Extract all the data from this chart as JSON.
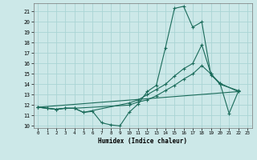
{
  "xlabel": "Humidex (Indice chaleur)",
  "xlim": [
    -0.5,
    23.5
  ],
  "ylim": [
    9.8,
    21.8
  ],
  "yticks": [
    10,
    11,
    12,
    13,
    14,
    15,
    16,
    17,
    18,
    19,
    20,
    21
  ],
  "xticks": [
    0,
    1,
    2,
    3,
    4,
    5,
    6,
    7,
    8,
    9,
    10,
    11,
    12,
    13,
    14,
    15,
    16,
    17,
    18,
    19,
    20,
    21,
    22,
    23
  ],
  "bg_color": "#cce8e8",
  "grid_color": "#aad4d4",
  "line_color": "#1a6b5a",
  "line1_x": [
    0,
    1,
    2,
    3,
    4,
    5,
    6,
    7,
    8,
    9,
    10,
    11,
    12,
    13,
    14,
    15,
    16,
    17,
    18,
    19,
    20,
    21,
    22
  ],
  "line1_y": [
    11.8,
    11.7,
    11.6,
    11.7,
    11.7,
    11.3,
    11.4,
    10.3,
    10.1,
    10.0,
    11.3,
    12.1,
    13.3,
    13.9,
    17.5,
    21.3,
    21.5,
    19.5,
    20.0,
    14.9,
    14.1,
    11.2,
    13.3
  ],
  "line2_x": [
    0,
    1,
    2,
    3,
    4,
    5,
    10,
    11,
    12,
    13,
    14,
    15,
    16,
    17,
    18,
    19,
    20,
    22
  ],
  "line2_y": [
    11.8,
    11.7,
    11.6,
    11.7,
    11.7,
    11.3,
    12.2,
    12.5,
    13.0,
    13.5,
    14.0,
    14.8,
    15.5,
    16.0,
    17.8,
    15.0,
    14.1,
    13.3
  ],
  "line3_x": [
    0,
    1,
    2,
    3,
    4,
    10,
    11,
    12,
    13,
    14,
    15,
    16,
    17,
    18,
    19,
    20,
    22
  ],
  "line3_y": [
    11.8,
    11.7,
    11.6,
    11.7,
    11.7,
    12.0,
    12.3,
    12.5,
    12.9,
    13.4,
    13.9,
    14.5,
    15.0,
    15.8,
    15.0,
    14.0,
    13.4
  ],
  "line4_x": [
    0,
    22
  ],
  "line4_y": [
    11.8,
    13.3
  ]
}
